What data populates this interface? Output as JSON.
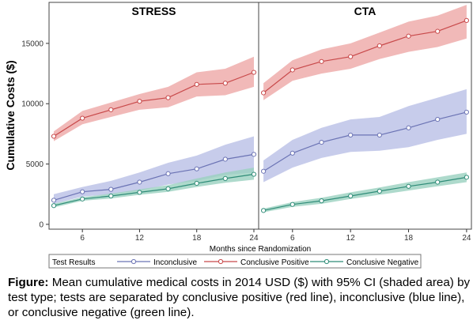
{
  "chart_data": {
    "type": "line",
    "ylabel": "Cumulative Costs ($)",
    "xlabel": "Months since Randomization",
    "x_ticks": [
      "6",
      "12",
      "18",
      "24"
    ],
    "y_ticks": [
      "0",
      "5000",
      "10000",
      "15000"
    ],
    "xlim": [
      2.5,
      24.5
    ],
    "ylim": [
      -400,
      18400
    ],
    "grid": false,
    "legend_title": "Test Results",
    "legend_position": "bottom",
    "colors": {
      "Inconclusive": "#6b73b4",
      "Conclusive Positive": "#c8494a",
      "Conclusive Negative": "#2f8c78"
    },
    "band_colors": {
      "Inconclusive": "#b9bfe6",
      "Conclusive Positive": "#eea8a6",
      "Conclusive Negative": "#9ad1bf"
    },
    "x": [
      3,
      6,
      9,
      12,
      15,
      18,
      21,
      24
    ],
    "panels": [
      {
        "title": "STRESS",
        "series": [
          {
            "name": "Conclusive Positive",
            "values": [
              7300,
              8800,
              9500,
              10200,
              10500,
              11600,
              11700,
              12600
            ],
            "lower": [
              6900,
              8300,
              8900,
              9500,
              9700,
              10600,
              10700,
              11400
            ],
            "upper": [
              7700,
              9400,
              10100,
              10800,
              11400,
              12600,
              12900,
              13900
            ]
          },
          {
            "name": "Inconclusive",
            "values": [
              2000,
              2700,
              2900,
              3500,
              4200,
              4600,
              5400,
              5800
            ],
            "lower": [
              1700,
              2300,
              2500,
              2800,
              3300,
              3600,
              4100,
              4300
            ],
            "upper": [
              2500,
              3100,
              3600,
              4300,
              5100,
              5700,
              6600,
              7300
            ]
          },
          {
            "name": "Conclusive Negative",
            "values": [
              1550,
              2100,
              2350,
              2650,
              2950,
              3400,
              3800,
              4150
            ],
            "lower": [
              1400,
              1950,
              2150,
              2450,
              2700,
              3100,
              3450,
              3700
            ],
            "upper": [
              1700,
              2250,
              2550,
              2900,
              3250,
              3800,
              4300,
              4700
            ]
          }
        ]
      },
      {
        "title": "CTA",
        "series": [
          {
            "name": "Conclusive Positive",
            "values": [
              10900,
              12800,
              13500,
              13900,
              14800,
              15600,
              16000,
              16900
            ],
            "lower": [
              10300,
              11900,
              12500,
              12900,
              13700,
              14300,
              14700,
              15400
            ],
            "upper": [
              11700,
              13600,
              14500,
              15000,
              15900,
              16800,
              17300,
              18200
            ]
          },
          {
            "name": "Inconclusive",
            "values": [
              4400,
              5900,
              6800,
              7400,
              7400,
              8000,
              8700,
              9300
            ],
            "lower": [
              3500,
              4700,
              5500,
              6000,
              6100,
              6400,
              7000,
              7500
            ],
            "upper": [
              5300,
              7000,
              8000,
              8700,
              8900,
              9800,
              10500,
              11200
            ]
          },
          {
            "name": "Conclusive Negative",
            "values": [
              1150,
              1650,
              1950,
              2350,
              2750,
              3150,
              3500,
              3900
            ],
            "lower": [
              1000,
              1450,
              1700,
              2100,
              2450,
              2800,
              3150,
              3500
            ],
            "upper": [
              1300,
              1850,
              2200,
              2650,
              3050,
              3500,
              3900,
              4300
            ]
          }
        ]
      }
    ]
  },
  "caption": {
    "label": "Figure:",
    "text": " Mean cumulative medical costs in 2014 USD ($) with 95% CI (shaded area) by test type; tests are separated by conclusive positive (red line), inconclusive (blue line), or conclusive negative (green line)."
  }
}
